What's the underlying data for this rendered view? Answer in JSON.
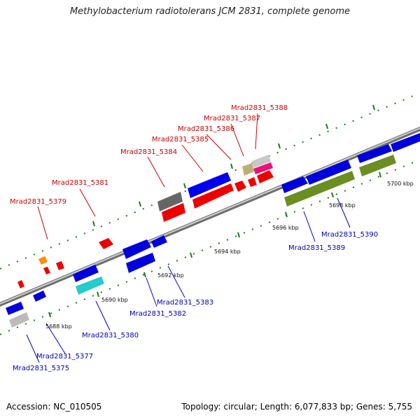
{
  "title": "Methylobacterium radiotolerans JCM 2831, complete genome",
  "accession": "Accession: NC_010505",
  "topology": "Topology: circular; Length: 6,077,833 bp; Genes: 5,755",
  "colors": {
    "forward_label": "#cc0000",
    "reverse_label": "#0000bb",
    "backbone": "#8a8a8a",
    "tick": "#1a7a1a"
  },
  "scale_labels": [
    "5688 kbp",
    "5690 kbp",
    "5692 kbp",
    "5694 kbp",
    "5696 kbp",
    "5698 kbp",
    "5700 kbp"
  ],
  "forward_labels": [
    "Mrad2831_5379",
    "Mrad2831_5381",
    "Mrad2831_5384",
    "Mrad2831_5385",
    "Mrad2831_5386",
    "Mrad2831_5387",
    "Mrad2831_5388"
  ],
  "reverse_labels": [
    "Mrad2831_5375",
    "Mrad2831_5377",
    "Mrad2831_5380",
    "Mrad2831_5382",
    "Mrad2831_5383",
    "Mrad2831_5389",
    "Mrad2831_5390"
  ],
  "feature_colors": [
    "red",
    "blue",
    "gray",
    "orange",
    "cyan",
    "olive",
    "tan",
    "pink",
    "silver"
  ]
}
